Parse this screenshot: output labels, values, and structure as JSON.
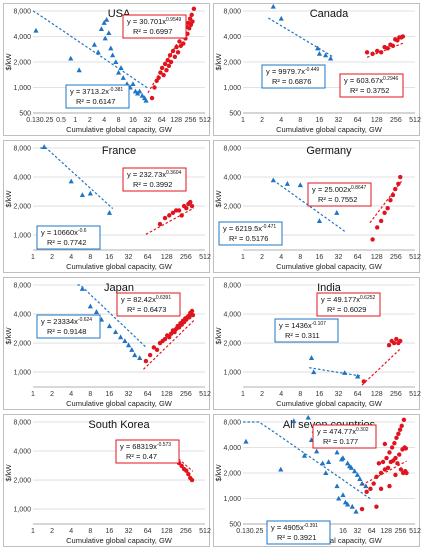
{
  "figure": {
    "y_axis_label": "$/kW",
    "x_axis_label": "Cumulative global capacity, GW"
  },
  "colors": {
    "pre_series": "#1f74c4",
    "post_series": "#e0141e",
    "pre_trend": "#1f74c4",
    "post_trend": "#e0141e",
    "gridline": "#d9d9d9",
    "frame": "#bfbfbf"
  },
  "chart_data": [
    {
      "type": "scatter",
      "title": "USA",
      "xlabel": "Cumulative global capacity, GW",
      "ylabel": "$/kW",
      "x_scale": "log2",
      "y_scale": "log2",
      "x_ticks": [
        "0.13",
        "0.25",
        "0.5",
        "1",
        "2",
        "4",
        "8",
        "16",
        "32",
        "64",
        "128",
        "256",
        "512"
      ],
      "y_ticks": [
        "500",
        "1,000",
        "2,000",
        "4,000",
        "8,000"
      ],
      "xlim": [
        0.13,
        512
      ],
      "ylim": [
        500,
        8000
      ],
      "series": [
        {
          "marker": "triangle",
          "color": "#1f74c4",
          "x": [
            0.15,
            0.8,
            1.2,
            2.5,
            3,
            3.5,
            4,
            4.2,
            4.5,
            5,
            5.5,
            6,
            7,
            8,
            9,
            10,
            12,
            14,
            16,
            18,
            20,
            22,
            25,
            28,
            30
          ],
          "y": [
            4700,
            2200,
            1600,
            3200,
            2600,
            4900,
            5800,
            3800,
            6300,
            4400,
            2900,
            2400,
            2000,
            1500,
            1700,
            1300,
            1100,
            1000,
            1100,
            900,
            850,
            900,
            800,
            750,
            700
          ]
        },
        {
          "marker": "circle",
          "color": "#e0141e",
          "x": [
            40,
            45,
            50,
            55,
            60,
            65,
            70,
            75,
            80,
            85,
            90,
            95,
            100,
            110,
            120,
            130,
            140,
            150,
            160,
            170,
            180,
            190,
            200,
            210,
            220,
            230,
            240,
            250,
            260,
            270,
            280,
            300
          ],
          "y": [
            750,
            1000,
            1200,
            1300,
            1500,
            1700,
            1400,
            1900,
            1600,
            2100,
            1800,
            2400,
            2000,
            2700,
            2300,
            3000,
            2600,
            3500,
            3100,
            4000,
            3300,
            4500,
            3800,
            5200,
            4300,
            5800,
            5000,
            6500,
            5500,
            7200,
            6000,
            8500
          ]
        }
      ],
      "trendlines": [
        {
          "equation_label": "y = 3713.2x",
          "exponent_label": "-0.381",
          "r2_label": "R² = 0.6147",
          "a": 3713.2,
          "b": -0.381,
          "x_range": [
            0.13,
            33
          ],
          "color": "#1f74c4"
        },
        {
          "equation_label": "y = 30.701x",
          "exponent_label": "0.9549",
          "r2_label": "R² = 0.6997",
          "a": 30.701,
          "b": 0.9549,
          "x_range": [
            33,
            240
          ],
          "color": "#e0141e"
        }
      ]
    },
    {
      "type": "scatter",
      "title": "Canada",
      "xlabel": "Cumulative global capacity, GW",
      "ylabel": "$/kW",
      "x_scale": "log2",
      "y_scale": "log2",
      "x_ticks": [
        "1",
        "2",
        "4",
        "8",
        "16",
        "32",
        "64",
        "128",
        "256",
        "512"
      ],
      "y_ticks": [
        "500",
        "1,000",
        "2,000",
        "4,000",
        "8,000"
      ],
      "xlim": [
        1,
        512
      ],
      "ylim": [
        500,
        8000
      ],
      "series": [
        {
          "marker": "triangle",
          "color": "#1f74c4",
          "x": [
            3,
            4,
            15,
            16,
            20,
            24
          ],
          "y": [
            9000,
            6500,
            2900,
            2500,
            2400,
            2200
          ]
        },
        {
          "marker": "circle",
          "color": "#e0141e",
          "x": [
            90,
            110,
            130,
            150,
            170,
            190,
            210,
            230,
            250,
            270,
            290,
            310,
            330
          ],
          "y": [
            2600,
            2500,
            2700,
            2600,
            3000,
            2900,
            3200,
            3100,
            3700,
            3600,
            3900,
            3900,
            4000
          ]
        }
      ],
      "trendlines": [
        {
          "equation_label": "y = 9979.7x",
          "exponent_label": "-0.449",
          "r2_label": "R² = 0.6876",
          "a": 9979.7,
          "b": -0.449,
          "x_range": [
            2.5,
            26
          ],
          "color": "#1f74c4"
        },
        {
          "equation_label": "y = 603.67x",
          "exponent_label": "0.2946",
          "r2_label": "R² = 0.3752",
          "a": 603.67,
          "b": 0.2946,
          "x_range": [
            90,
            340
          ],
          "color": "#e0141e"
        }
      ]
    },
    {
      "type": "scatter",
      "title": "France",
      "xlabel": "Cumulative global capacity, GW",
      "ylabel": "$/kW",
      "x_scale": "log2",
      "y_scale": "log2",
      "x_ticks": [
        "1",
        "2",
        "4",
        "8",
        "16",
        "32",
        "64",
        "128",
        "256",
        "512"
      ],
      "y_ticks": [
        "1,000",
        "2,000",
        "4,000",
        "8,000"
      ],
      "xlim": [
        1,
        512
      ],
      "ylim": [
        700,
        8000
      ],
      "series": [
        {
          "marker": "triangle",
          "color": "#1f74c4",
          "x": [
            1.5,
            4,
            6,
            8,
            16
          ],
          "y": [
            8200,
            3600,
            2600,
            2700,
            1700
          ]
        },
        {
          "marker": "circle",
          "color": "#e0141e",
          "x": [
            100,
            120,
            140,
            160,
            180,
            200,
            220,
            240,
            260,
            280,
            300,
            320
          ],
          "y": [
            1300,
            1500,
            1600,
            1700,
            1800,
            1800,
            1600,
            2000,
            1900,
            2100,
            2200,
            2000
          ]
        }
      ],
      "trendlines": [
        {
          "equation_label": "y = 10660x",
          "exponent_label": "-0.6",
          "r2_label": "R² = 0.7742",
          "a": 10660,
          "b": -0.6,
          "x_range": [
            1.3,
            18
          ],
          "color": "#1f74c4"
        },
        {
          "equation_label": "y = 232.73x",
          "exponent_label": "0.3604",
          "r2_label": "R² = 0.3992",
          "a": 232.73,
          "b": 0.3604,
          "x_range": [
            60,
            340
          ],
          "color": "#e0141e"
        }
      ]
    },
    {
      "type": "scatter",
      "title": "Germany",
      "xlabel": "Cumulative global capacity, GW",
      "ylabel": "$/kW",
      "x_scale": "log2",
      "y_scale": "log2",
      "x_ticks": [
        "1",
        "2",
        "4",
        "8",
        "16",
        "32",
        "64",
        "128",
        "256",
        "512"
      ],
      "y_ticks": [
        "1,000",
        "2,000",
        "4,000",
        "8,000"
      ],
      "xlim": [
        1,
        512
      ],
      "ylim": [
        700,
        8000
      ],
      "series": [
        {
          "marker": "triangle",
          "color": "#1f74c4",
          "x": [
            3,
            5,
            8,
            12,
            16,
            20,
            30
          ],
          "y": [
            3700,
            3400,
            3300,
            2500,
            1400,
            3100,
            1700
          ]
        },
        {
          "marker": "circle",
          "color": "#e0141e",
          "x": [
            110,
            130,
            150,
            170,
            190,
            210,
            230,
            250,
            280,
            300
          ],
          "y": [
            900,
            1200,
            1400,
            1700,
            1900,
            2300,
            2600,
            3000,
            3400,
            4000
          ]
        }
      ],
      "trendlines": [
        {
          "equation_label": "y = 6219.5x",
          "exponent_label": "-0.471",
          "r2_label": "R² = 0.5176",
          "a": 6219.5,
          "b": -0.471,
          "x_range": [
            3,
            40
          ],
          "color": "#1f74c4"
        },
        {
          "equation_label": "y = 25.002x",
          "exponent_label": "0.8647",
          "r2_label": "R² = 0.7552",
          "a": 25.002,
          "b": 0.8647,
          "x_range": [
            100,
            320
          ],
          "color": "#e0141e"
        }
      ]
    },
    {
      "type": "scatter",
      "title": "Japan",
      "xlabel": "Cumulative global capacity, GW",
      "ylabel": "$/kW",
      "x_scale": "log2",
      "y_scale": "log2",
      "x_ticks": [
        "1",
        "2",
        "4",
        "8",
        "16",
        "32",
        "64",
        "128",
        "256",
        "512"
      ],
      "y_ticks": [
        "1,000",
        "2,000",
        "4,000",
        "8,000"
      ],
      "xlim": [
        1,
        512
      ],
      "ylim": [
        700,
        8000
      ],
      "series": [
        {
          "marker": "triangle",
          "color": "#1f74c4",
          "x": [
            6,
            8,
            10,
            12,
            16,
            20,
            24,
            28,
            32,
            36,
            40,
            48
          ],
          "y": [
            7300,
            4800,
            4200,
            3500,
            3000,
            2600,
            2300,
            2100,
            1900,
            1700,
            1500,
            1400
          ]
        },
        {
          "marker": "circle",
          "color": "#e0141e",
          "x": [
            60,
            70,
            80,
            90,
            100,
            110,
            120,
            130,
            140,
            150,
            160,
            170,
            180,
            190,
            200,
            210,
            220,
            230,
            240,
            250,
            260,
            270,
            280,
            290,
            300,
            310,
            320,
            330
          ],
          "y": [
            1300,
            1500,
            1800,
            1700,
            2000,
            2100,
            2200,
            2400,
            2300,
            2500,
            2700,
            2600,
            2800,
            3000,
            2900,
            3200,
            3100,
            3400,
            3300,
            3600,
            3500,
            3700,
            3800,
            3700,
            4100,
            4000,
            4300,
            3900
          ]
        }
      ],
      "trendlines": [
        {
          "equation_label": "y = 23334x",
          "exponent_label": "-0.624",
          "r2_label": "R² = 0.9148",
          "a": 23334,
          "b": -0.624,
          "x_range": [
            5,
            60
          ],
          "color": "#1f74c4"
        },
        {
          "equation_label": "y = 82.42x",
          "exponent_label": "0.6391",
          "r2_label": "R² = 0.6473",
          "a": 82.42,
          "b": 0.6391,
          "x_range": [
            55,
            340
          ],
          "color": "#e0141e"
        }
      ]
    },
    {
      "type": "scatter",
      "title": "India",
      "xlabel": "Cumulative global capacity, GW",
      "ylabel": "$/kW",
      "x_scale": "log2",
      "y_scale": "log2",
      "x_ticks": [
        "1",
        "2",
        "4",
        "8",
        "16",
        "32",
        "64",
        "128",
        "256",
        "512"
      ],
      "y_ticks": [
        "1,000",
        "2,000",
        "4,000",
        "8,000"
      ],
      "xlim": [
        1,
        512
      ],
      "ylim": [
        700,
        8000
      ],
      "series": [
        {
          "marker": "triangle",
          "color": "#1f74c4",
          "x": [
            12,
            13,
            40,
            64
          ],
          "y": [
            1400,
            1000,
            980,
            900
          ]
        },
        {
          "marker": "circle",
          "color": "#e0141e",
          "x": [
            80,
            200,
            220,
            240,
            260,
            280,
            300
          ],
          "y": [
            800,
            1900,
            2100,
            2000,
            2200,
            2000,
            2100
          ]
        }
      ],
      "trendlines": [
        {
          "equation_label": "y = 1436x",
          "exponent_label": "-0.107",
          "r2_label": "R² = 0.311",
          "a": 1436,
          "b": -0.107,
          "x_range": [
            11,
            70
          ],
          "color": "#1f74c4"
        },
        {
          "equation_label": "y = 49.177x",
          "exponent_label": "0.6252",
          "r2_label": "R² = 0.6029",
          "a": 49.177,
          "b": 0.6252,
          "x_range": [
            75,
            300
          ],
          "color": "#e0141e"
        }
      ]
    },
    {
      "type": "scatter",
      "title": "South Korea",
      "xlabel": "Cumulative global capacity, GW",
      "ylabel": "$/kW",
      "x_scale": "log2",
      "y_scale": "log2",
      "x_ticks": [
        "1",
        "2",
        "4",
        "8",
        "16",
        "32",
        "64",
        "128",
        "256",
        "512"
      ],
      "y_ticks": [
        "1,000",
        "2,000",
        "4,000",
        "8,000"
      ],
      "xlim": [
        1,
        512
      ],
      "ylim": [
        700,
        8000
      ],
      "series": [
        {
          "marker": "circle",
          "color": "#e0141e",
          "x": [
            120,
            140,
            160,
            180,
            200,
            220,
            240,
            260,
            280,
            300,
            320
          ],
          "y": [
            4400,
            3800,
            3400,
            3200,
            3000,
            2800,
            2600,
            2500,
            2300,
            2100,
            2000
          ]
        }
      ],
      "trendlines": [
        {
          "equation_label": "y = 68319x",
          "exponent_label": "-0.573",
          "r2_label": "R² = 0.47",
          "a": 68319,
          "b": -0.573,
          "x_range": [
            120,
            330
          ],
          "color": "#e0141e"
        }
      ]
    },
    {
      "type": "scatter",
      "title": "All seven countries",
      "xlabel": "Cumulative global capacity, GW",
      "ylabel": "$/kW",
      "x_scale": "log2",
      "y_scale": "log2",
      "x_ticks": [
        "0.13",
        "0.25",
        "0.5",
        "1",
        "2",
        "4",
        "8",
        "16",
        "32",
        "64",
        "128",
        "256",
        "512"
      ],
      "y_ticks": [
        "500",
        "1,000",
        "2,000",
        "4,000",
        "8,000"
      ],
      "xlim": [
        0.13,
        512
      ],
      "ylim": [
        500,
        8000
      ],
      "series": [
        {
          "marker": "triangle",
          "color": "#1f74c4",
          "x": [
            0.15,
            0.8,
            1.5,
            2.5,
            3,
            3.5,
            4,
            4.5,
            5,
            6,
            6,
            7,
            8,
            8,
            10,
            12,
            12,
            13,
            15,
            16,
            16,
            18,
            20,
            20,
            22,
            24,
            25,
            28,
            30,
            32,
            36,
            40,
            48
          ],
          "y": [
            4700,
            2200,
            8200,
            3200,
            9000,
            4900,
            6300,
            3600,
            4400,
            7300,
            2600,
            2000,
            4800,
            2700,
            4200,
            3500,
            1400,
            1000,
            2900,
            3000,
            1100,
            900,
            2600,
            850,
            2400,
            2300,
            800,
            2100,
            700,
            1900,
            1700,
            1500,
            1400
          ]
        },
        {
          "marker": "circle",
          "color": "#e0141e",
          "x": [
            40,
            50,
            60,
            70,
            80,
            80,
            90,
            100,
            100,
            110,
            120,
            120,
            130,
            140,
            150,
            150,
            160,
            170,
            180,
            190,
            200,
            200,
            210,
            220,
            230,
            240,
            250,
            260,
            270,
            280,
            290,
            300,
            310,
            320,
            330,
            340
          ],
          "y": [
            750,
            1200,
            1300,
            1500,
            1800,
            800,
            2600,
            2000,
            1300,
            2700,
            4400,
            2200,
            3000,
            2300,
            3500,
            1400,
            2700,
            4000,
            2800,
            4500,
            1900,
            3000,
            5200,
            2600,
            5800,
            3300,
            6500,
            2200,
            7200,
            3800,
            2000,
            8500,
            4000,
            2100,
            3900,
            2000
          ]
        }
      ],
      "trendlines": [
        {
          "equation_label": "y = 4905x",
          "exponent_label": "-0.391",
          "r2_label": "R² = 0.3921",
          "a": 4905,
          "b": -0.391,
          "x_range": [
            0.13,
            60
          ],
          "color": "#1f74c4"
        },
        {
          "equation_label": "y = 474.77x",
          "exponent_label": "0.302",
          "r2_label": "R² = 0.177",
          "a": 474.77,
          "b": 0.302,
          "x_range": [
            40,
            340
          ],
          "color": "#e0141e"
        }
      ]
    }
  ]
}
